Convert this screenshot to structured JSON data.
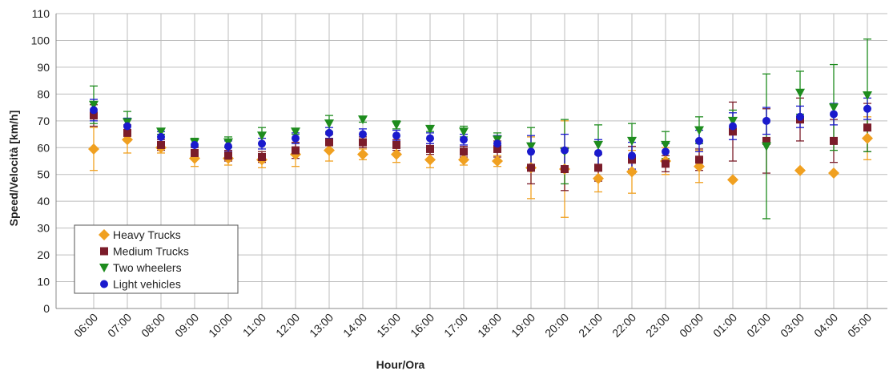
{
  "chart_data": {
    "type": "scatter-error",
    "x_label": "Hour/Ora",
    "y_label": "Speed/Velocità   [km/h]",
    "categories": [
      "06:00",
      "07:00",
      "08:00",
      "09:00",
      "10:00",
      "11:00",
      "12:00",
      "13:00",
      "14:00",
      "15:00",
      "16:00",
      "17:00",
      "18:00",
      "19:00",
      "20:00",
      "21:00",
      "22:00",
      "23:00",
      "00:00",
      "01:00",
      "02:00",
      "03:00",
      "04:00",
      "05:00"
    ],
    "ylim": [
      0,
      110
    ],
    "yticks": [
      0,
      10,
      20,
      30,
      40,
      50,
      60,
      70,
      80,
      90,
      100,
      110
    ],
    "grid": true,
    "legend": "lower-left",
    "series": [
      {
        "name": "Heavy Trucks",
        "color": "#f0a020",
        "marker": "diamond",
        "values": [
          59.5,
          63,
          60,
          56,
          56,
          55.5,
          57.5,
          59,
          57.5,
          57.5,
          55.5,
          55.5,
          55,
          52.5,
          52,
          48.5,
          51,
          55,
          53,
          48,
          null,
          51.5,
          50.5,
          63.5
        ],
        "errors": [
          8,
          5,
          2,
          3,
          2.5,
          3,
          4.5,
          4,
          2,
          3,
          3,
          2,
          2,
          11.5,
          18,
          5,
          8,
          5,
          6,
          null,
          null,
          null,
          null,
          8
        ]
      },
      {
        "name": "Medium Trucks",
        "color": "#7b1c2a",
        "marker": "square",
        "values": [
          72,
          65.5,
          61,
          58,
          57,
          56.5,
          59,
          62,
          62,
          61,
          59.5,
          58.5,
          59.5,
          52.5,
          52,
          52.5,
          55.5,
          54,
          55.5,
          66,
          62.5,
          70.5,
          62.5,
          67.5
        ],
        "errors": [
          4,
          3,
          2,
          2,
          2,
          2,
          3,
          3,
          2,
          2,
          2,
          2,
          3,
          6,
          8,
          5,
          5,
          3,
          4,
          11,
          12,
          8,
          8,
          9
        ]
      },
      {
        "name": "Two wheelers",
        "color": "#1e8c1e",
        "marker": "triangle-down",
        "values": [
          76,
          69.5,
          66,
          62,
          62,
          64.5,
          66,
          69,
          70.5,
          68.5,
          67,
          66,
          63,
          60.5,
          58.5,
          61,
          62.5,
          61,
          66.5,
          70,
          60.5,
          80.5,
          75,
          79.5
        ],
        "errors": [
          7,
          4,
          1,
          1.5,
          2,
          3,
          1,
          3,
          1,
          1.5,
          1,
          2,
          2.5,
          7,
          12,
          7.5,
          6.5,
          5,
          5,
          4,
          27,
          8,
          16,
          21
        ]
      },
      {
        "name": "Light vehicles",
        "color": "#1a1acd",
        "marker": "circle",
        "values": [
          74,
          68,
          64,
          61,
          60.5,
          61.5,
          63.5,
          65.5,
          65,
          64.5,
          63.5,
          63,
          61.5,
          58.5,
          59,
          58,
          57,
          58.5,
          62.5,
          68,
          70,
          71.5,
          72.5,
          74.5
        ],
        "errors": [
          4,
          3,
          2,
          2,
          2,
          2,
          2,
          2,
          2,
          2,
          2,
          2,
          3,
          6,
          6,
          5,
          5,
          3,
          4,
          5,
          5,
          4,
          4,
          4
        ]
      }
    ]
  }
}
